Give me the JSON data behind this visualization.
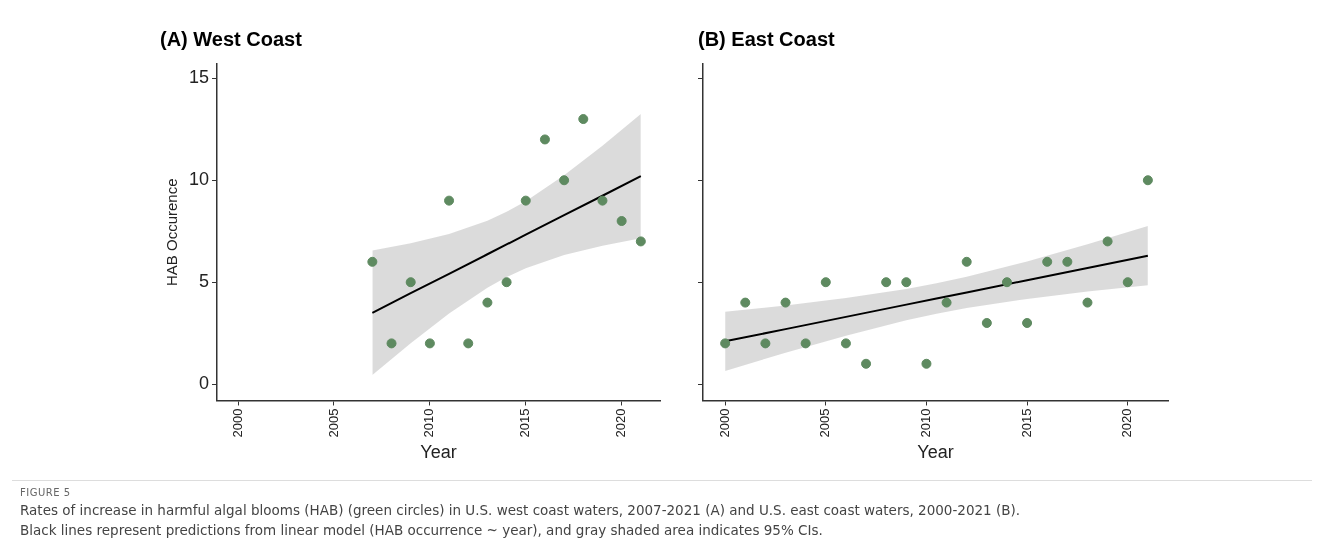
{
  "chart_data": [
    {
      "type": "scatter",
      "title": "(A) West Coast",
      "xlabel": "Year",
      "ylabel": "HAB Occurence",
      "xlim": [
        1998.9,
        2022
      ],
      "xticks": [
        2000,
        2005,
        2010,
        2015,
        2020
      ],
      "ylim": [
        -0.8,
        15.7
      ],
      "yticks": [
        0,
        5,
        10,
        15
      ],
      "grid": false,
      "legend": false,
      "series": [
        {
          "marker": "circle",
          "color": "#5e8a60",
          "x": [
            2007,
            2008,
            2009,
            2010,
            2011,
            2012,
            2013,
            2014,
            2015,
            2016,
            2017,
            2018,
            2019,
            2020,
            2021
          ],
          "values": [
            6,
            2,
            5,
            2,
            9,
            2,
            4,
            5,
            9,
            12,
            10,
            13,
            9,
            8,
            7
          ]
        },
        {
          "type": "line",
          "marker": "none",
          "color": "#000000",
          "line_style": "solid",
          "x": [
            2007,
            2009,
            2011,
            2013,
            2014,
            2015,
            2017,
            2019,
            2021
          ],
          "values": [
            3.5,
            4.46,
            5.41,
            6.37,
            6.85,
            7.33,
            8.29,
            9.24,
            10.2
          ],
          "lower": [
            0.45,
            2.01,
            3.46,
            4.73,
            5.25,
            5.69,
            6.34,
            6.79,
            7.15
          ],
          "upper": [
            6.55,
            6.91,
            7.36,
            8.01,
            8.45,
            8.97,
            10.24,
            11.69,
            13.25
          ]
        }
      ],
      "annotations": [
        "FIGURE 5",
        "Rates of increase in harmful algal blooms (HAB) (green circles) in U.S. west coast waters, 2007-2021 (A) and U.S. east coast waters, 2000-2021 (B).",
        "Black lines represent predictions from linear model (HAB occurrence ~ year), and gray shaded area indicates 95% CIs."
      ]
    },
    {
      "type": "scatter",
      "title": "(B) East Coast",
      "xlabel": "Year",
      "xlim": [
        1998.9,
        2022
      ],
      "xticks": [
        2000,
        2005,
        2010,
        2015,
        2020
      ],
      "ylim": [
        -0.8,
        15.7
      ],
      "yticks": [
        0,
        5,
        10,
        15
      ],
      "tick_labels": "x",
      "grid": false,
      "legend": false,
      "series": [
        {
          "marker": "circle",
          "color": "#5e8a60",
          "x": [
            2000,
            2001,
            2002,
            2003,
            2004,
            2005,
            2006,
            2007,
            2008,
            2009,
            2010,
            2011,
            2012,
            2013,
            2014,
            2015,
            2016,
            2017,
            2018,
            2019,
            2020,
            2021
          ],
          "values": [
            2,
            4,
            2,
            4,
            2,
            5,
            2,
            1,
            5,
            5,
            1,
            4,
            6,
            3,
            5,
            3,
            6,
            6,
            4,
            7,
            5,
            10
          ]
        },
        {
          "type": "line",
          "marker": "none",
          "color": "#000000",
          "line_style": "solid",
          "x": [
            2000,
            2003,
            2006,
            2009,
            2010.5,
            2012,
            2015,
            2018,
            2021
          ],
          "values": [
            2.1,
            2.7,
            3.3,
            3.9,
            4.2,
            4.5,
            5.1,
            5.7,
            6.3
          ],
          "lower": [
            0.65,
            1.54,
            2.38,
            3.13,
            3.45,
            3.73,
            4.18,
            4.54,
            4.85
          ],
          "upper": [
            3.55,
            3.86,
            4.22,
            4.67,
            4.95,
            5.27,
            6.02,
            6.86,
            7.75
          ]
        }
      ]
    }
  ]
}
